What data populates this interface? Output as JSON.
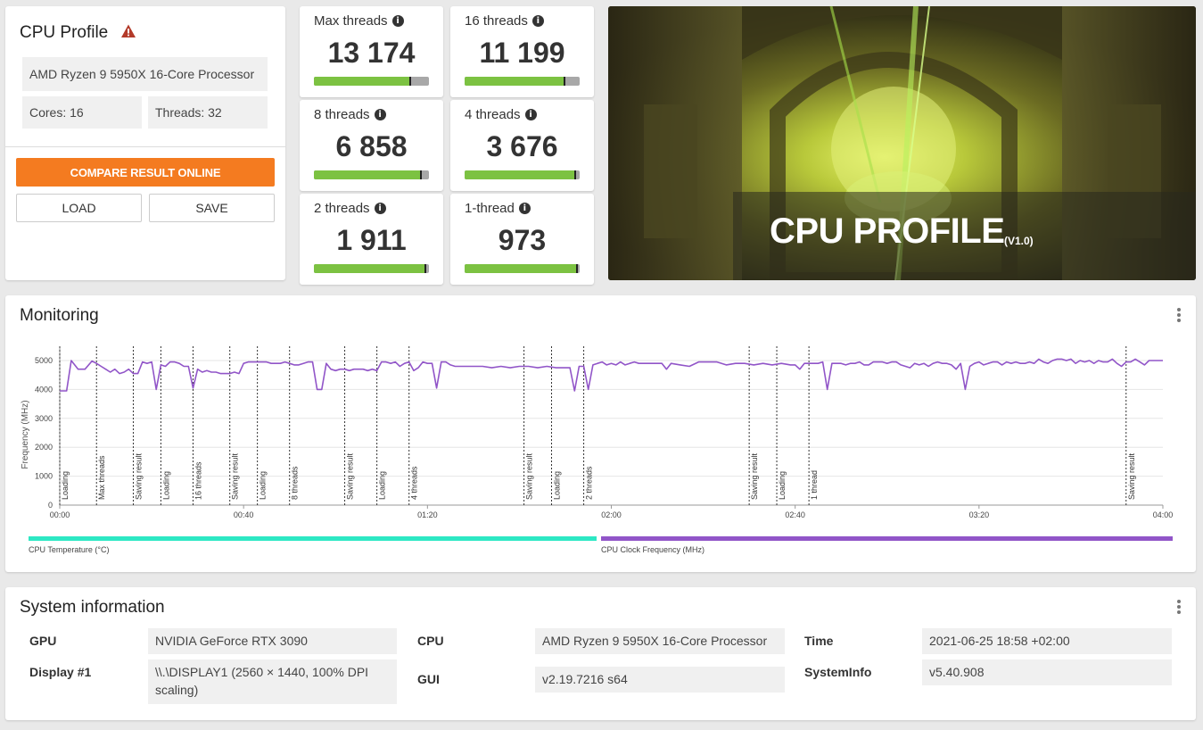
{
  "profile": {
    "title": "CPU Profile",
    "warning_icon": "warning-triangle-icon",
    "processor": "AMD Ryzen 9 5950X 16-Core Processor",
    "cores": "Cores: 16",
    "threads": "Threads: 32",
    "compare_label": "COMPARE RESULT ONLINE",
    "load_label": "LOAD",
    "save_label": "SAVE",
    "accent_color": "#f47b20"
  },
  "scores": [
    {
      "label": "Max threads",
      "value": "13 174",
      "fill": 0.84
    },
    {
      "label": "16 threads",
      "value": "11 199",
      "fill": 0.87
    },
    {
      "label": "8 threads",
      "value": "6 858",
      "fill": 0.93
    },
    {
      "label": "4 threads",
      "value": "3 676",
      "fill": 0.96
    },
    {
      "label": "2 threads",
      "value": "1 911",
      "fill": 0.97
    },
    {
      "label": "1-thread",
      "value": "973",
      "fill": 0.98
    }
  ],
  "banner": {
    "title": "CPU PROFILE",
    "version": "(V1.0)"
  },
  "monitoring": {
    "title": "Monitoring",
    "menu_icon": "kebab-menu-icon",
    "legend": [
      {
        "label": "CPU Temperature (°C)",
        "color": "#2de8c4"
      },
      {
        "label": "CPU Clock Frequency (MHz)",
        "color": "#9155c8"
      }
    ]
  },
  "chart_data": {
    "type": "line",
    "ylabel": "Frequency (MHz)",
    "xlabel": "",
    "ylim": [
      0,
      5000
    ],
    "xlim_seconds": [
      0,
      240
    ],
    "yticks": [
      0,
      1000,
      2000,
      3000,
      4000,
      5000
    ],
    "xticks": [
      "00:00",
      "00:40",
      "01:20",
      "02:00",
      "02:40",
      "03:20",
      "04:00"
    ],
    "grid": true,
    "series": [
      {
        "name": "CPU Clock Frequency (MHz)",
        "color": "#9155c8",
        "points": [
          [
            0,
            3950
          ],
          [
            1.5,
            3950
          ],
          [
            2.5,
            5000
          ],
          [
            4,
            4700
          ],
          [
            5.5,
            4700
          ],
          [
            7,
            4980
          ],
          [
            8,
            4900
          ],
          [
            9,
            4800
          ],
          [
            10,
            4700
          ],
          [
            11,
            4600
          ],
          [
            12,
            4700
          ],
          [
            13,
            4550
          ],
          [
            14,
            4600
          ],
          [
            15,
            4700
          ],
          [
            16,
            4550
          ],
          [
            17,
            4550
          ],
          [
            18,
            4950
          ],
          [
            19,
            4900
          ],
          [
            20,
            4950
          ],
          [
            21,
            4000
          ],
          [
            22,
            4850
          ],
          [
            23,
            4800
          ],
          [
            24,
            4950
          ],
          [
            25,
            4950
          ],
          [
            26,
            4900
          ],
          [
            27,
            4800
          ],
          [
            28,
            4800
          ],
          [
            29,
            4050
          ],
          [
            30,
            4700
          ],
          [
            31,
            4600
          ],
          [
            32,
            4650
          ],
          [
            33,
            4600
          ],
          [
            34,
            4600
          ],
          [
            35,
            4550
          ],
          [
            36,
            4550
          ],
          [
            37,
            4550
          ],
          [
            38,
            4600
          ],
          [
            39,
            4550
          ],
          [
            40,
            4900
          ],
          [
            41,
            4950
          ],
          [
            42,
            4950
          ],
          [
            43,
            4950
          ],
          [
            44,
            4950
          ],
          [
            45,
            4950
          ],
          [
            46,
            4900
          ],
          [
            47,
            4900
          ],
          [
            48,
            4900
          ],
          [
            49,
            4950
          ],
          [
            50,
            4900
          ],
          [
            51,
            4850
          ],
          [
            52,
            4850
          ],
          [
            53,
            4900
          ],
          [
            54,
            4950
          ],
          [
            55,
            4950
          ],
          [
            56,
            4000
          ],
          [
            57,
            4000
          ],
          [
            58,
            4900
          ],
          [
            59,
            4700
          ],
          [
            60,
            4650
          ],
          [
            61,
            4700
          ],
          [
            62,
            4700
          ],
          [
            63,
            4650
          ],
          [
            64,
            4700
          ],
          [
            65,
            4700
          ],
          [
            66,
            4700
          ],
          [
            67,
            4650
          ],
          [
            68,
            4700
          ],
          [
            69,
            4650
          ],
          [
            70,
            4950
          ],
          [
            71,
            4950
          ],
          [
            72,
            4900
          ],
          [
            73,
            4950
          ],
          [
            74,
            4800
          ],
          [
            75,
            4900
          ],
          [
            76,
            4950
          ],
          [
            77,
            4650
          ],
          [
            78,
            4750
          ],
          [
            79,
            4950
          ],
          [
            80,
            4900
          ],
          [
            81,
            4900
          ],
          [
            82,
            4050
          ],
          [
            83,
            4950
          ],
          [
            84,
            4950
          ],
          [
            85,
            4850
          ],
          [
            86,
            4800
          ],
          [
            88,
            4800
          ],
          [
            90,
            4800
          ],
          [
            92,
            4800
          ],
          [
            94,
            4750
          ],
          [
            96,
            4800
          ],
          [
            98,
            4750
          ],
          [
            100,
            4800
          ],
          [
            102,
            4800
          ],
          [
            104,
            4750
          ],
          [
            106,
            4800
          ],
          [
            108,
            4750
          ],
          [
            110,
            4750
          ],
          [
            111,
            4750
          ],
          [
            112,
            3950
          ],
          [
            113,
            4800
          ],
          [
            114,
            4800
          ],
          [
            115,
            4000
          ],
          [
            116,
            4850
          ],
          [
            117,
            4900
          ],
          [
            118,
            4950
          ],
          [
            119,
            4850
          ],
          [
            120,
            4900
          ],
          [
            121,
            4850
          ],
          [
            122,
            4950
          ],
          [
            123,
            4850
          ],
          [
            124,
            4900
          ],
          [
            125,
            4950
          ],
          [
            126,
            4900
          ],
          [
            127,
            4900
          ],
          [
            129,
            4900
          ],
          [
            131,
            4900
          ],
          [
            132,
            4700
          ],
          [
            133,
            4900
          ],
          [
            135,
            4850
          ],
          [
            137,
            4800
          ],
          [
            139,
            4950
          ],
          [
            141,
            4950
          ],
          [
            143,
            4950
          ],
          [
            145,
            4850
          ],
          [
            147,
            4900
          ],
          [
            149,
            4900
          ],
          [
            151,
            4850
          ],
          [
            153,
            4900
          ],
          [
            155,
            4850
          ],
          [
            157,
            4900
          ],
          [
            159,
            4850
          ],
          [
            160,
            4850
          ],
          [
            161,
            4700
          ],
          [
            162,
            4900
          ],
          [
            163,
            4900
          ],
          [
            164,
            4900
          ],
          [
            165,
            4900
          ],
          [
            166,
            4950
          ],
          [
            167,
            4000
          ],
          [
            168,
            4900
          ],
          [
            169,
            4900
          ],
          [
            170,
            4900
          ],
          [
            171,
            4850
          ],
          [
            172,
            4900
          ],
          [
            173,
            4900
          ],
          [
            174,
            4950
          ],
          [
            175,
            4850
          ],
          [
            176,
            4850
          ],
          [
            177,
            4950
          ],
          [
            178,
            4950
          ],
          [
            179,
            4950
          ],
          [
            180,
            4900
          ],
          [
            181,
            4950
          ],
          [
            182,
            4950
          ],
          [
            183,
            4850
          ],
          [
            184,
            4800
          ],
          [
            185,
            4750
          ],
          [
            186,
            4900
          ],
          [
            187,
            4850
          ],
          [
            188,
            4900
          ],
          [
            189,
            4800
          ],
          [
            190,
            4900
          ],
          [
            191,
            4950
          ],
          [
            192,
            4900
          ],
          [
            193,
            4900
          ],
          [
            194,
            4850
          ],
          [
            195,
            4700
          ],
          [
            196,
            4900
          ],
          [
            197,
            4000
          ],
          [
            198,
            4800
          ],
          [
            199,
            4900
          ],
          [
            200,
            4950
          ],
          [
            201,
            4850
          ],
          [
            202,
            4900
          ],
          [
            203,
            4950
          ],
          [
            204,
            4950
          ],
          [
            205,
            4850
          ],
          [
            206,
            4950
          ],
          [
            207,
            4900
          ],
          [
            208,
            4950
          ],
          [
            209,
            4900
          ],
          [
            210,
            4900
          ],
          [
            211,
            4950
          ],
          [
            212,
            4900
          ],
          [
            213,
            5050
          ],
          [
            214,
            4950
          ],
          [
            215,
            4900
          ],
          [
            216,
            5000
          ],
          [
            217,
            5050
          ],
          [
            218,
            5050
          ],
          [
            219,
            5000
          ],
          [
            220,
            5050
          ],
          [
            221,
            4900
          ],
          [
            222,
            5000
          ],
          [
            223,
            4950
          ],
          [
            224,
            5000
          ],
          [
            225,
            4900
          ],
          [
            226,
            5000
          ],
          [
            227,
            4950
          ],
          [
            228,
            4950
          ],
          [
            229,
            5050
          ],
          [
            230,
            4900
          ],
          [
            231,
            4800
          ],
          [
            232,
            4950
          ],
          [
            233,
            4950
          ],
          [
            234,
            5050
          ],
          [
            235,
            4950
          ],
          [
            236,
            4850
          ],
          [
            237,
            5000
          ],
          [
            238,
            5000
          ],
          [
            240,
            5000
          ]
        ]
      }
    ],
    "phase_markers": [
      {
        "t": 0,
        "label": "Loading"
      },
      {
        "t": 8,
        "label": "Max threads"
      },
      {
        "t": 16,
        "label": "Saving result"
      },
      {
        "t": 22,
        "label": "Loading"
      },
      {
        "t": 29,
        "label": "16 threads"
      },
      {
        "t": 37,
        "label": "Saving result"
      },
      {
        "t": 43,
        "label": "Loading"
      },
      {
        "t": 50,
        "label": "8 threads"
      },
      {
        "t": 62,
        "label": "Saving result"
      },
      {
        "t": 69,
        "label": "Loading"
      },
      {
        "t": 76,
        "label": "4 threads"
      },
      {
        "t": 101,
        "label": "Saving result"
      },
      {
        "t": 107,
        "label": "Loading"
      },
      {
        "t": 114,
        "label": "2 threads"
      },
      {
        "t": 150,
        "label": "Saving result"
      },
      {
        "t": 156,
        "label": "Loading"
      },
      {
        "t": 163,
        "label": "1 thread"
      },
      {
        "t": 232,
        "label": "Saving result"
      }
    ]
  },
  "system": {
    "title": "System information",
    "menu_icon": "kebab-menu-icon",
    "gpu_label": "GPU",
    "gpu_value": "NVIDIA GeForce RTX 3090",
    "display_label": "Display #1",
    "display_value": "\\\\.\\DISPLAY1 (2560 × 1440, 100% DPI scaling)",
    "cpu_label": "CPU",
    "cpu_value": "AMD Ryzen 9 5950X 16-Core Processor",
    "gui_label": "GUI",
    "gui_value": "v2.19.7216 s64",
    "time_label": "Time",
    "time_value": "2021-06-25 18:58 +02:00",
    "sysinfo_label": "SystemInfo",
    "sysinfo_value": "v5.40.908"
  }
}
